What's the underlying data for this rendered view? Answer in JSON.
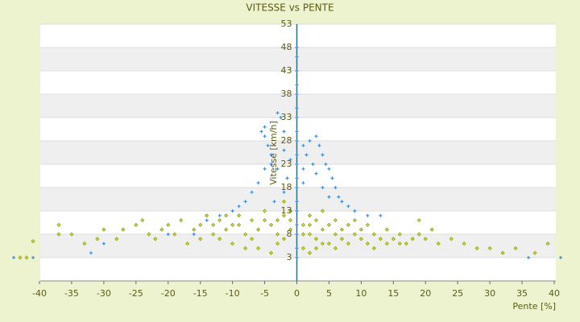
{
  "chart_data": {
    "type": "scatter",
    "title": "VITESSE vs PENTE",
    "x_label": "Pente [%]",
    "y_label": "Vitesse [km/h]",
    "xlim": [
      -40,
      40
    ],
    "xticks": [
      -40,
      -35,
      -30,
      -25,
      -20,
      -15,
      -10,
      -5,
      0,
      5,
      10,
      15,
      20,
      25,
      30,
      35,
      40
    ],
    "ylim": [
      -2,
      53
    ],
    "yticks": [
      3,
      8,
      13,
      18,
      23,
      28,
      33,
      38,
      43,
      48,
      53
    ],
    "grid": true,
    "series": [
      {
        "color": "#3d8fd6",
        "x": [
          -5.5,
          -5,
          -5,
          -4.5,
          -4,
          -4,
          -5,
          -6,
          -7,
          -8,
          -9,
          -3,
          -2.5,
          -2,
          -2,
          -3,
          -1.5,
          -2,
          -1,
          -3.5,
          -10,
          -12,
          -14,
          1,
          1.5,
          2,
          3,
          3.5,
          4,
          4.5,
          5,
          5.5,
          6,
          6.5,
          7,
          8,
          9,
          11,
          13,
          2.5,
          3,
          1,
          1,
          4,
          5,
          -16,
          -20,
          -30,
          -32,
          -44,
          -41,
          36,
          41,
          0,
          0,
          0,
          0,
          0,
          0,
          0,
          0,
          0,
          0,
          0,
          0,
          0,
          0,
          0,
          0,
          0,
          0,
          0
        ],
        "values": [
          30,
          31,
          29,
          27,
          25,
          23,
          22,
          19,
          17,
          15,
          14,
          34,
          33,
          30,
          26,
          22,
          20,
          17,
          24,
          15,
          13,
          12,
          11,
          27,
          25,
          28,
          29,
          27,
          25,
          23,
          22,
          20,
          18,
          16,
          15,
          14,
          13,
          12,
          12,
          23,
          21,
          22,
          19,
          18,
          16,
          8,
          8,
          6,
          4,
          3,
          3,
          3,
          3,
          3,
          8,
          13,
          18,
          23,
          28,
          33,
          38,
          46,
          48,
          5,
          10,
          15,
          20,
          25,
          30,
          35,
          43,
          40
        ]
      },
      {
        "color": "#8c9c12",
        "x": [
          -43,
          -42,
          -41,
          -37,
          -37,
          -35,
          -33,
          -31,
          -30,
          -28,
          -27,
          -25,
          -24,
          -23,
          -22,
          -21,
          -20,
          -19,
          -18,
          -17,
          -16,
          -15,
          -14,
          -13,
          -12,
          -11,
          -10,
          -9,
          -8,
          -7,
          -6,
          -5,
          -4,
          -3,
          -2,
          -1,
          -6,
          -4,
          -3,
          -8,
          -10,
          -12,
          -2,
          -1,
          -5,
          -7,
          -9,
          -11,
          -13,
          -15,
          -3,
          -1,
          -2,
          1,
          2,
          2,
          3,
          3,
          4,
          4,
          5,
          5,
          6,
          6,
          7,
          7,
          8,
          8,
          9,
          10,
          10,
          11,
          12,
          13,
          14,
          15,
          16,
          17,
          18,
          19,
          20,
          21,
          22,
          24,
          26,
          28,
          30,
          32,
          34,
          37,
          39,
          1,
          2,
          3,
          4,
          6,
          9,
          11,
          12,
          14,
          16,
          19,
          1,
          2
        ],
        "values": [
          3,
          3,
          6.5,
          8,
          10,
          8,
          6,
          7,
          9,
          7,
          9,
          10,
          11,
          8,
          7,
          9,
          10,
          8,
          11,
          6,
          9,
          10,
          12,
          8,
          11,
          9,
          10,
          12,
          8,
          11,
          9,
          13,
          10,
          8,
          12,
          9,
          5,
          4,
          6,
          5,
          6,
          7,
          15,
          11,
          11,
          7,
          10,
          12,
          10,
          7,
          11,
          13,
          7,
          10,
          12,
          8,
          11,
          7,
          9,
          13,
          10,
          6,
          8,
          11,
          9,
          7,
          10,
          6,
          8,
          9,
          7,
          6,
          8,
          7,
          9,
          7,
          8,
          6,
          7,
          8,
          7,
          9,
          6,
          7,
          6,
          5,
          5,
          4,
          5,
          4,
          6,
          5,
          4,
          5,
          6,
          5,
          11,
          10,
          5,
          6,
          6,
          11,
          8,
          10
        ]
      }
    ]
  }
}
